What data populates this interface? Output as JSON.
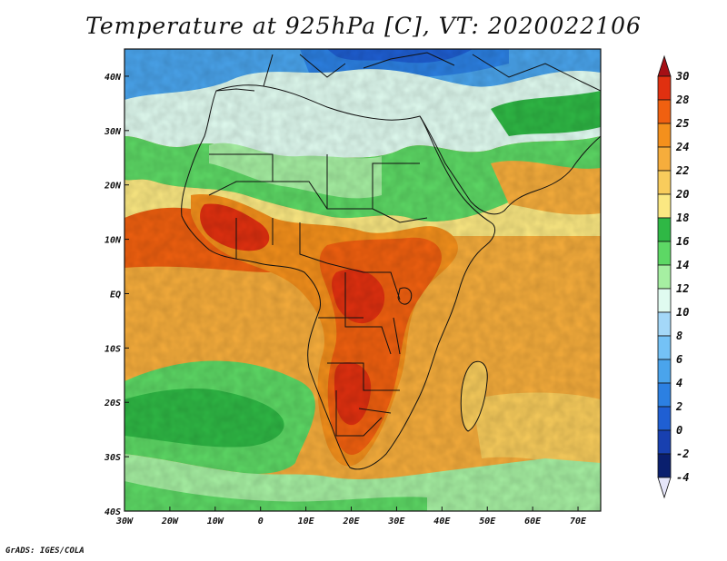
{
  "title": "Temperature at 925hPa [C], VT: 2020022106",
  "credit": "GrADS: IGES/COLA",
  "map": {
    "lon_range": [
      -30,
      75
    ],
    "lat_range": [
      -40,
      45
    ],
    "lon_ticks": [
      {
        "value": -30,
        "label": "30W"
      },
      {
        "value": -20,
        "label": "20W"
      },
      {
        "value": -10,
        "label": "10W"
      },
      {
        "value": 0,
        "label": "0"
      },
      {
        "value": 10,
        "label": "10E"
      },
      {
        "value": 20,
        "label": "20E"
      },
      {
        "value": 30,
        "label": "30E"
      },
      {
        "value": 40,
        "label": "40E"
      },
      {
        "value": 50,
        "label": "50E"
      },
      {
        "value": 60,
        "label": "60E"
      },
      {
        "value": 70,
        "label": "70E"
      }
    ],
    "lat_ticks": [
      {
        "value": 40,
        "label": "40N"
      },
      {
        "value": 30,
        "label": "30N"
      },
      {
        "value": 20,
        "label": "20N"
      },
      {
        "value": 10,
        "label": "10N"
      },
      {
        "value": 0,
        "label": "EQ"
      },
      {
        "value": -10,
        "label": "10S"
      },
      {
        "value": -20,
        "label": "20S"
      },
      {
        "value": -30,
        "label": "30S"
      },
      {
        "value": -40,
        "label": "40S"
      }
    ]
  },
  "colorbar": {
    "levels": [
      {
        "label": "30",
        "color": "#a50f15"
      },
      {
        "label": "28",
        "color": "#e03010"
      },
      {
        "label": "25",
        "color": "#f06010"
      },
      {
        "label": "24",
        "color": "#f4901c"
      },
      {
        "label": "22",
        "color": "#f6ad3c"
      },
      {
        "label": "20",
        "color": "#f8cc5c"
      },
      {
        "label": "18",
        "color": "#fbe882"
      },
      {
        "label": "16",
        "color": "#2fb845"
      },
      {
        "label": "14",
        "color": "#5dd865"
      },
      {
        "label": "12",
        "color": "#a6efa2"
      },
      {
        "label": "10",
        "color": "#e0fbf0"
      },
      {
        "label": "8",
        "color": "#a4d8f8"
      },
      {
        "label": "6",
        "color": "#74c2f6"
      },
      {
        "label": "4",
        "color": "#4aa4ec"
      },
      {
        "label": "2",
        "color": "#2c80e2"
      },
      {
        "label": "0",
        "color": "#1f5fd3"
      },
      {
        "label": "-2",
        "color": "#1840b0"
      },
      {
        "label": "-4",
        "color": "#0a1f6e"
      }
    ],
    "below_min_color": "#e6e6fa"
  }
}
